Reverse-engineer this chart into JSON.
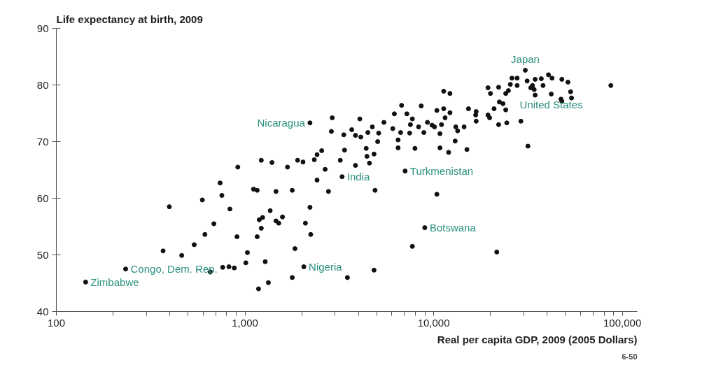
{
  "chart_data": {
    "type": "scatter",
    "ylabel": "Life expectancy at birth, 2009",
    "xlabel": "Real per capita GDP, 2009 (2005 Dollars)",
    "log": "x",
    "grid": false,
    "marker": "circle",
    "xlim": [
      100,
      120000
    ],
    "ylim": [
      40,
      90
    ],
    "xticks": [
      {
        "value": 100,
        "label": "100"
      },
      {
        "value": 200,
        "label": null
      },
      {
        "value": 300,
        "label": null
      },
      {
        "value": 400,
        "label": null
      },
      {
        "value": 500,
        "label": null
      },
      {
        "value": 600,
        "label": null
      },
      {
        "value": 700,
        "label": null
      },
      {
        "value": 800,
        "label": null
      },
      {
        "value": 900,
        "label": null
      },
      {
        "value": 1000,
        "label": "1,000"
      },
      {
        "value": 2000,
        "label": null
      },
      {
        "value": 3000,
        "label": null
      },
      {
        "value": 4000,
        "label": null
      },
      {
        "value": 5000,
        "label": null
      },
      {
        "value": 6000,
        "label": null
      },
      {
        "value": 7000,
        "label": null
      },
      {
        "value": 8000,
        "label": null
      },
      {
        "value": 9000,
        "label": null
      },
      {
        "value": 10000,
        "label": "10,000"
      },
      {
        "value": 20000,
        "label": null
      },
      {
        "value": 30000,
        "label": null
      },
      {
        "value": 40000,
        "label": null
      },
      {
        "value": 50000,
        "label": null
      },
      {
        "value": 60000,
        "label": null
      },
      {
        "value": 70000,
        "label": null
      },
      {
        "value": 80000,
        "label": null
      },
      {
        "value": 90000,
        "label": null
      },
      {
        "value": 100000,
        "label": "100,000"
      }
    ],
    "yticks": [
      40,
      50,
      60,
      70,
      80,
      90
    ],
    "series": [
      {
        "color": "#111111",
        "x": [
          1220,
          1390,
          916,
          738,
          1110,
          1160,
          754,
          594,
          397,
          832,
          1360,
          1240,
          1190,
          684,
          1220,
          613,
          907,
          1160,
          538,
          1030,
          368,
          462,
          1010,
          1280,
          233,
          655,
          762,
          822,
          877,
          143,
          1330,
          1180,
          2210,
          2900,
          4060,
          2870,
          3340,
          3680,
          3850,
          4110,
          2550,
          2410,
          2330,
          3370,
          3200,
          3850,
          1900,
          2030,
          1680,
          2660,
          3270,
          2410,
          1460,
          1780,
          2770,
          2210,
          1580,
          1460,
          1510,
          2090,
          2230,
          1840,
          7710,
          2050,
          4830,
          1780,
          3490,
          30600,
          26000,
          27700,
          31300,
          34500,
          37200,
          40600,
          42400,
          47800,
          51500,
          25500,
          27700,
          33400,
          38000,
          32700,
          34100,
          19400,
          22100,
          20000,
          24100,
          24900,
          34500,
          42000,
          47300,
          47800,
          53200,
          53800,
          86900,
          11300,
          12200,
          22300,
          23300,
          20900,
          24100,
          15300,
          16800,
          16700,
          16800,
          19400,
          19800,
          22100,
          24400,
          29000,
          31600,
          6760,
          8590,
          10400,
          11300,
          12200,
          11500,
          6190,
          7210,
          7710,
          7530,
          8320,
          5450,
          4730,
          9270,
          9800,
          10100,
          11000,
          8870,
          10800,
          13100,
          13400,
          14500,
          6070,
          6680,
          7460,
          4480,
          5110,
          6480,
          13000,
          5050,
          6480,
          7960,
          10800,
          12000,
          15000,
          4390,
          4830,
          4430,
          4570,
          7060,
          4890,
          10400,
          8970,
          21600
        ],
        "values": [
          66.7,
          66.3,
          65.5,
          62.7,
          61.6,
          61.4,
          60.5,
          59.7,
          58.5,
          58.1,
          57.8,
          56.6,
          56.2,
          55.5,
          54.7,
          53.6,
          53.2,
          53.2,
          51.8,
          50.4,
          50.7,
          49.9,
          48.6,
          48.8,
          47.5,
          47.0,
          47.8,
          47.9,
          47.7,
          45.2,
          45.1,
          44.0,
          73.3,
          74.2,
          74.0,
          71.8,
          71.2,
          72.1,
          71.1,
          70.8,
          68.4,
          67.7,
          66.8,
          68.5,
          66.7,
          65.8,
          66.7,
          66.4,
          65.5,
          65.1,
          63.8,
          63.2,
          61.2,
          61.4,
          61.2,
          58.4,
          56.7,
          56.0,
          55.6,
          55.6,
          53.6,
          51.1,
          51.5,
          47.9,
          47.3,
          46.0,
          46.0,
          82.6,
          81.2,
          81.2,
          80.7,
          81.0,
          81.1,
          81.8,
          81.2,
          81.0,
          80.5,
          80.1,
          79.9,
          79.9,
          79.9,
          79.5,
          79.2,
          79.5,
          79.6,
          78.5,
          78.5,
          79.0,
          78.2,
          78.4,
          77.5,
          77.1,
          78.8,
          77.7,
          79.9,
          78.9,
          78.5,
          77.0,
          76.7,
          75.8,
          75.6,
          75.8,
          75.3,
          74.7,
          73.6,
          74.7,
          74.2,
          73.0,
          73.3,
          73.6,
          69.2,
          76.4,
          76.3,
          75.5,
          75.8,
          75.1,
          74.2,
          74.9,
          74.9,
          74.0,
          73.0,
          72.6,
          73.4,
          72.6,
          73.4,
          72.9,
          72.6,
          73.0,
          71.6,
          71.4,
          72.6,
          71.9,
          72.6,
          72.3,
          71.6,
          71.5,
          71.6,
          71.5,
          70.3,
          70.1,
          70.0,
          68.9,
          68.8,
          68.9,
          68.1,
          68.6,
          68.8,
          67.8,
          67.4,
          66.2,
          64.8,
          61.4,
          60.7,
          54.8,
          50.5
        ]
      }
    ],
    "annotations": [
      {
        "text": "Japan",
        "x": 30600,
        "y": 82.6
      },
      {
        "text": "United States",
        "x": 42000,
        "y": 78.4
      },
      {
        "text": "Nicaragua",
        "x": 2210,
        "y": 73.3
      },
      {
        "text": "Turkmenistan",
        "x": 7060,
        "y": 64.8
      },
      {
        "text": "India",
        "x": 3270,
        "y": 63.8
      },
      {
        "text": "Botswana",
        "x": 8970,
        "y": 54.8
      },
      {
        "text": "Nigeria",
        "x": 2050,
        "y": 47.9
      },
      {
        "text": "Congo, Dem. Rep.",
        "x": 233,
        "y": 47.5
      },
      {
        "text": "Zimbabwe",
        "x": 143,
        "y": 45.2
      },
      "6-50"
    ]
  }
}
